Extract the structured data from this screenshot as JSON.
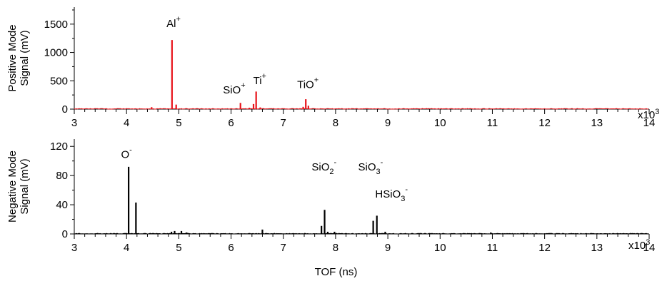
{
  "chart_data": [
    {
      "type": "line",
      "ylabel_lines": [
        "Positive Mode",
        "Signal (mV)"
      ],
      "xlim": [
        3000,
        14000
      ],
      "ylim": [
        0,
        1800
      ],
      "x_ticks": [
        3,
        4,
        5,
        6,
        7,
        8,
        9,
        10,
        11,
        12,
        13,
        14
      ],
      "y_ticks": [
        0,
        500,
        1000,
        1500
      ],
      "x_multiplier": "x10",
      "x_multiplier_exp": "3",
      "color": "#e8141b",
      "series": [
        {
          "peaks": [
            {
              "x": 4480,
              "y": 35
            },
            {
              "x": 4870,
              "y": 1220
            },
            {
              "x": 4950,
              "y": 80
            },
            {
              "x": 6180,
              "y": 110
            },
            {
              "x": 6350,
              "y": 25
            },
            {
              "x": 6430,
              "y": 90
            },
            {
              "x": 6480,
              "y": 310
            },
            {
              "x": 6560,
              "y": 30
            },
            {
              "x": 7320,
              "y": 15
            },
            {
              "x": 7380,
              "y": 40
            },
            {
              "x": 7430,
              "y": 175
            },
            {
              "x": 7480,
              "y": 60
            }
          ]
        }
      ],
      "annotations": [
        {
          "base": "Al",
          "sup": "+",
          "sub": "",
          "x": 4900,
          "y": 1450
        },
        {
          "base": "SiO",
          "sup": "+",
          "sub": "",
          "x": 6060,
          "y": 280
        },
        {
          "base": "Ti",
          "sup": "+",
          "sub": "",
          "x": 6550,
          "y": 440
        },
        {
          "base": "TiO",
          "sup": "+",
          "sub": "",
          "x": 7470,
          "y": 370
        }
      ]
    },
    {
      "type": "line",
      "ylabel_lines": [
        "Negative Mode",
        "Signal (mV)"
      ],
      "xlabel": "TOF (ns)",
      "xlim": [
        3000,
        14000
      ],
      "ylim": [
        0,
        130
      ],
      "x_ticks": [
        3,
        4,
        5,
        6,
        7,
        8,
        9,
        10,
        11,
        12,
        13,
        14
      ],
      "y_ticks": [
        0,
        40,
        80,
        120
      ],
      "x_multiplier": "x10",
      "x_multiplier_exp": "3",
      "color": "#000000",
      "series": [
        {
          "peaks": [
            {
              "x": 4040,
              "y": 92
            },
            {
              "x": 4180,
              "y": 43
            },
            {
              "x": 4860,
              "y": 3
            },
            {
              "x": 4920,
              "y": 4
            },
            {
              "x": 5050,
              "y": 4
            },
            {
              "x": 5150,
              "y": 2
            },
            {
              "x": 6600,
              "y": 6
            },
            {
              "x": 7730,
              "y": 11
            },
            {
              "x": 7790,
              "y": 33
            },
            {
              "x": 7850,
              "y": 3
            },
            {
              "x": 7980,
              "y": 3
            },
            {
              "x": 8720,
              "y": 18
            },
            {
              "x": 8790,
              "y": 25
            },
            {
              "x": 8950,
              "y": 3
            },
            {
              "x": 10970,
              "y": 2
            }
          ]
        }
      ],
      "annotations": [
        {
          "base": "O",
          "sup": "-",
          "sub": "",
          "x": 4000,
          "y": 104
        },
        {
          "base": "SiO",
          "sup": "-",
          "sub": "2",
          "x": 7780,
          "y": 87
        },
        {
          "base": "SiO",
          "sup": "-",
          "sub": "3",
          "x": 8670,
          "y": 87
        },
        {
          "base": "HSiO",
          "sup": "-",
          "sub": "3",
          "x": 9070,
          "y": 50
        }
      ]
    }
  ]
}
